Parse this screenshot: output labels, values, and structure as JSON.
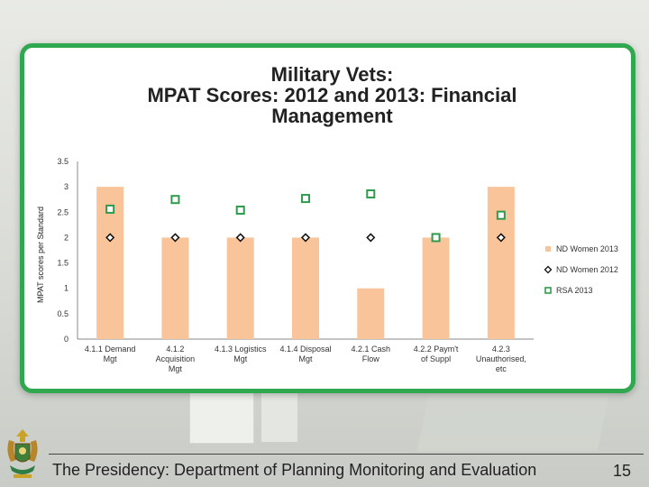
{
  "colors": {
    "bar": "#f9c49a",
    "women2012": "#111111",
    "rsa2013": "#2e9b4d",
    "frame": "#2fa84f"
  },
  "chart_data": {
    "type": "bar",
    "title_lines": [
      "Military Vets:",
      "MPAT Scores: 2012 and 2013: Financial",
      "Management"
    ],
    "ylabel": "MPAT scores per Standard",
    "xlabel": "",
    "ylim": [
      0,
      3.5
    ],
    "yticks": [
      "3.5",
      "3",
      "2.5",
      "2",
      "1.5",
      "1",
      "0.5",
      "0"
    ],
    "ytick_values": [
      3.5,
      3,
      2.5,
      2,
      1.5,
      1,
      0.5,
      0
    ],
    "categories": [
      [
        "4.1.1 Demand",
        "Mgt"
      ],
      [
        "4.1.2",
        "Acquisition",
        "Mgt"
      ],
      [
        "4.1.3 Logistics",
        "Mgt"
      ],
      [
        "4.1.4 Disposal",
        "Mgt"
      ],
      [
        "4.2.1 Cash",
        "Flow"
      ],
      [
        "4.2.2 Paym't",
        "of Suppl"
      ],
      [
        "4.2.3",
        "Unauthorised,",
        "etc"
      ]
    ],
    "series": [
      {
        "name": "ND Women 2013",
        "kind": "bar",
        "values": [
          3,
          2,
          2,
          2,
          1,
          2,
          3
        ]
      },
      {
        "name": "ND Women 2012",
        "kind": "diamond",
        "values": [
          2,
          2,
          2,
          2,
          2,
          2,
          2
        ]
      },
      {
        "name": "RSA 2013",
        "kind": "square",
        "values": [
          2.56,
          2.75,
          2.54,
          2.77,
          2.86,
          2,
          2.44
        ]
      }
    ],
    "legend_position": "right"
  },
  "footer": {
    "text": "The Presidency: Department of Planning Monitoring and Evaluation",
    "page_number": "15"
  }
}
